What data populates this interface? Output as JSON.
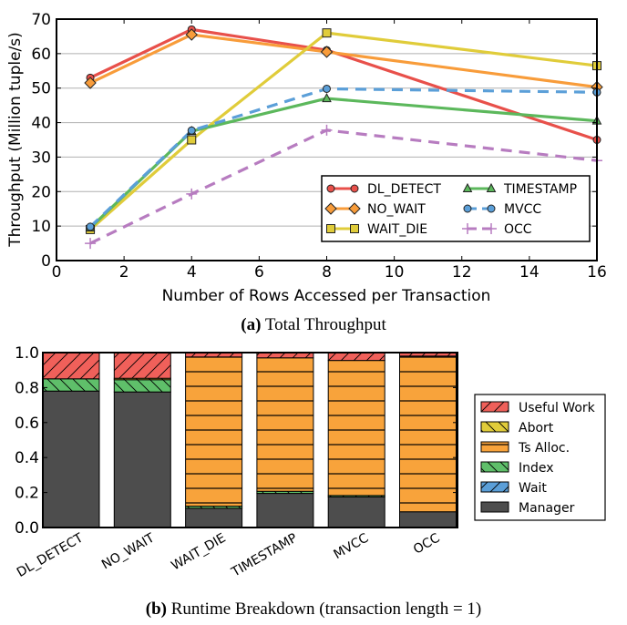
{
  "chart_data": [
    {
      "type": "line",
      "title": "",
      "caption_bold": "(a)",
      "caption_text": " Total Throughput",
      "xlabel": "Number of Rows Accessed per Transaction",
      "ylabel": "Throughput (Million tuple/s)",
      "xlim": [
        0,
        16
      ],
      "ylim": [
        0,
        70
      ],
      "xticks": [
        0,
        2,
        4,
        6,
        8,
        10,
        12,
        14,
        16
      ],
      "yticks": [
        0,
        10,
        20,
        30,
        40,
        50,
        60,
        70
      ],
      "grid": "horizontal",
      "legend_placement": "lower-right",
      "x": [
        1,
        4,
        8,
        16
      ],
      "series": [
        {
          "name": "DL_DETECT",
          "values": [
            53,
            67,
            61,
            35
          ],
          "color": "#e8504a",
          "marker": "circle",
          "dashed": false
        },
        {
          "name": "NO_WAIT",
          "values": [
            51.5,
            65.5,
            60.5,
            50.3
          ],
          "color": "#f89c3a",
          "marker": "diamond",
          "dashed": false
        },
        {
          "name": "WAIT_DIE",
          "values": [
            9,
            35,
            66,
            56.5
          ],
          "color": "#e0cc3a",
          "marker": "square",
          "dashed": false
        },
        {
          "name": "TIMESTAMP",
          "values": [
            9.5,
            37.5,
            47,
            40.5
          ],
          "color": "#5cb85c",
          "marker": "triangle",
          "dashed": false
        },
        {
          "name": "MVCC",
          "values": [
            9.8,
            37.7,
            49.8,
            48.8
          ],
          "color": "#5b9fd8",
          "marker": "circle",
          "dashed": true
        },
        {
          "name": "OCC",
          "values": [
            5,
            19.3,
            37.8,
            29
          ],
          "color": "#b77cc0",
          "marker": "plus",
          "dashed": true
        }
      ]
    },
    {
      "type": "bar",
      "stacked": true,
      "title": "",
      "caption_bold": "(b)",
      "caption_text": " Runtime Breakdown (transaction length = 1)",
      "xlabel": "",
      "ylabel": "",
      "ylim": [
        0,
        1.0
      ],
      "yticks": [
        "0.0",
        "0.2",
        "0.4",
        "0.6",
        "0.8",
        "1.0"
      ],
      "legend_placement": "right",
      "categories": [
        "DL_DETECT",
        "NO_WAIT",
        "WAIT_DIE",
        "TIMESTAMP",
        "MVCC",
        "OCC"
      ],
      "series": [
        {
          "name": "Manager",
          "color": "#4d4d4d",
          "hatch": "none",
          "values": [
            0.78,
            0.775,
            0.11,
            0.195,
            0.175,
            0.09
          ]
        },
        {
          "name": "Wait",
          "color": "#5b9fd8",
          "hatch": "slash",
          "values": [
            0,
            0,
            0,
            0,
            0,
            0
          ]
        },
        {
          "name": "Index",
          "color": "#5fbf6a",
          "hatch": "backslash",
          "values": [
            0.07,
            0.07,
            0.012,
            0.012,
            0.008,
            0
          ]
        },
        {
          "name": "Ts Alloc.",
          "color": "#f8a33b",
          "hatch": "horizontal",
          "values": [
            0,
            0,
            0.853,
            0.763,
            0.772,
            0.89
          ]
        },
        {
          "name": "Abort",
          "color": "#e0cc3a",
          "hatch": "backslash",
          "values": [
            0,
            0.008,
            0,
            0,
            0,
            0
          ]
        },
        {
          "name": "Useful Work",
          "color": "#f0605a",
          "hatch": "slash",
          "values": [
            0.15,
            0.147,
            0.025,
            0.03,
            0.045,
            0.02
          ]
        }
      ],
      "legend_order": [
        "Useful Work",
        "Abort",
        "Ts Alloc.",
        "Index",
        "Wait",
        "Manager"
      ]
    }
  ]
}
